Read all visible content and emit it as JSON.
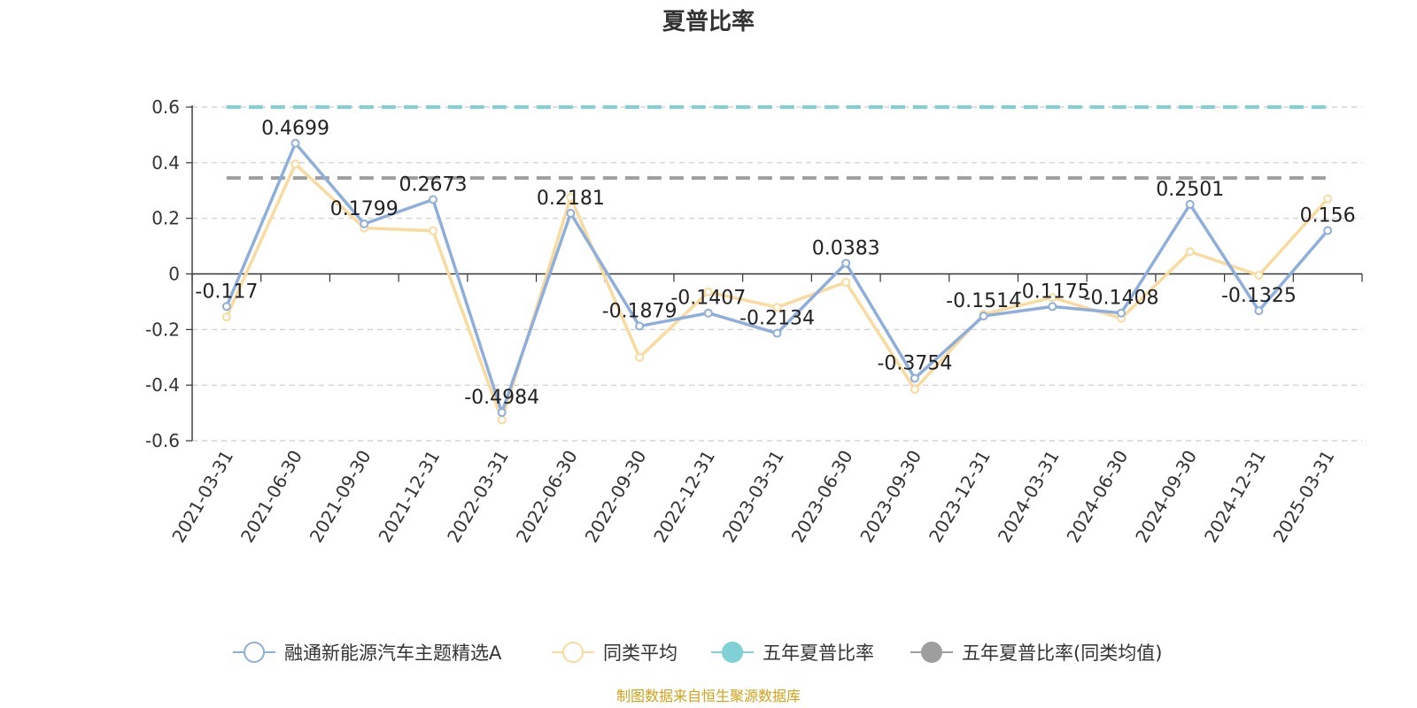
{
  "chart_data": {
    "type": "line",
    "title": "夏普比率",
    "categories": [
      "2021-03-31",
      "2021-06-30",
      "2021-09-30",
      "2021-12-31",
      "2022-03-31",
      "2022-06-30",
      "2022-09-30",
      "2022-12-31",
      "2023-03-31",
      "2023-06-30",
      "2023-09-30",
      "2023-12-31",
      "2024-03-31",
      "2024-06-30",
      "2024-09-30",
      "2024-12-31",
      "2025-03-31"
    ],
    "ylim": [
      -0.6,
      0.6
    ],
    "yticks": [
      0.6,
      0.4,
      0.2,
      0,
      -0.2,
      -0.4,
      -0.6
    ],
    "ytick_labels": [
      "0.6",
      "0.4",
      "0.2",
      "0",
      "-0.2",
      "-0.4",
      "-0.6"
    ],
    "grid": true,
    "legend_position": "bottom",
    "series": [
      {
        "name": "融通新能源汽车主题精选A",
        "color": "#8eaedc",
        "values": [
          -0.117,
          0.4699,
          0.1799,
          0.2673,
          -0.4984,
          0.2181,
          -0.1879,
          -0.1407,
          -0.2134,
          0.0383,
          -0.3754,
          -0.1514,
          -0.1175,
          -0.1408,
          0.2501,
          -0.1325,
          0.156
        ],
        "labels": [
          "-0.117",
          "0.4699",
          "0.1799",
          "0.2673",
          "-0.4984",
          "0.2181",
          "-0.1879",
          "-0.1407",
          "-0.2134",
          "0.0383",
          "-0.3754",
          "-0.1514",
          "-0.1175",
          "-0.1408",
          "0.2501",
          "-0.1325",
          "0.156"
        ]
      },
      {
        "name": "同类平均",
        "color": "#fadb9e",
        "values": [
          -0.155,
          0.395,
          0.165,
          0.155,
          -0.525,
          0.275,
          -0.3,
          -0.065,
          -0.12,
          -0.03,
          -0.415,
          -0.145,
          -0.085,
          -0.16,
          0.08,
          -0.005,
          0.27
        ]
      },
      {
        "name": "五年夏普比率",
        "color": "#7fd1d5",
        "value": 0.6
      },
      {
        "name": "五年夏普比率(同类均值)",
        "color": "#9e9e9e",
        "value": 0.345
      }
    ]
  },
  "source": {
    "text": "制图数据来自恒生聚源数据库",
    "color": "#d4a017"
  }
}
